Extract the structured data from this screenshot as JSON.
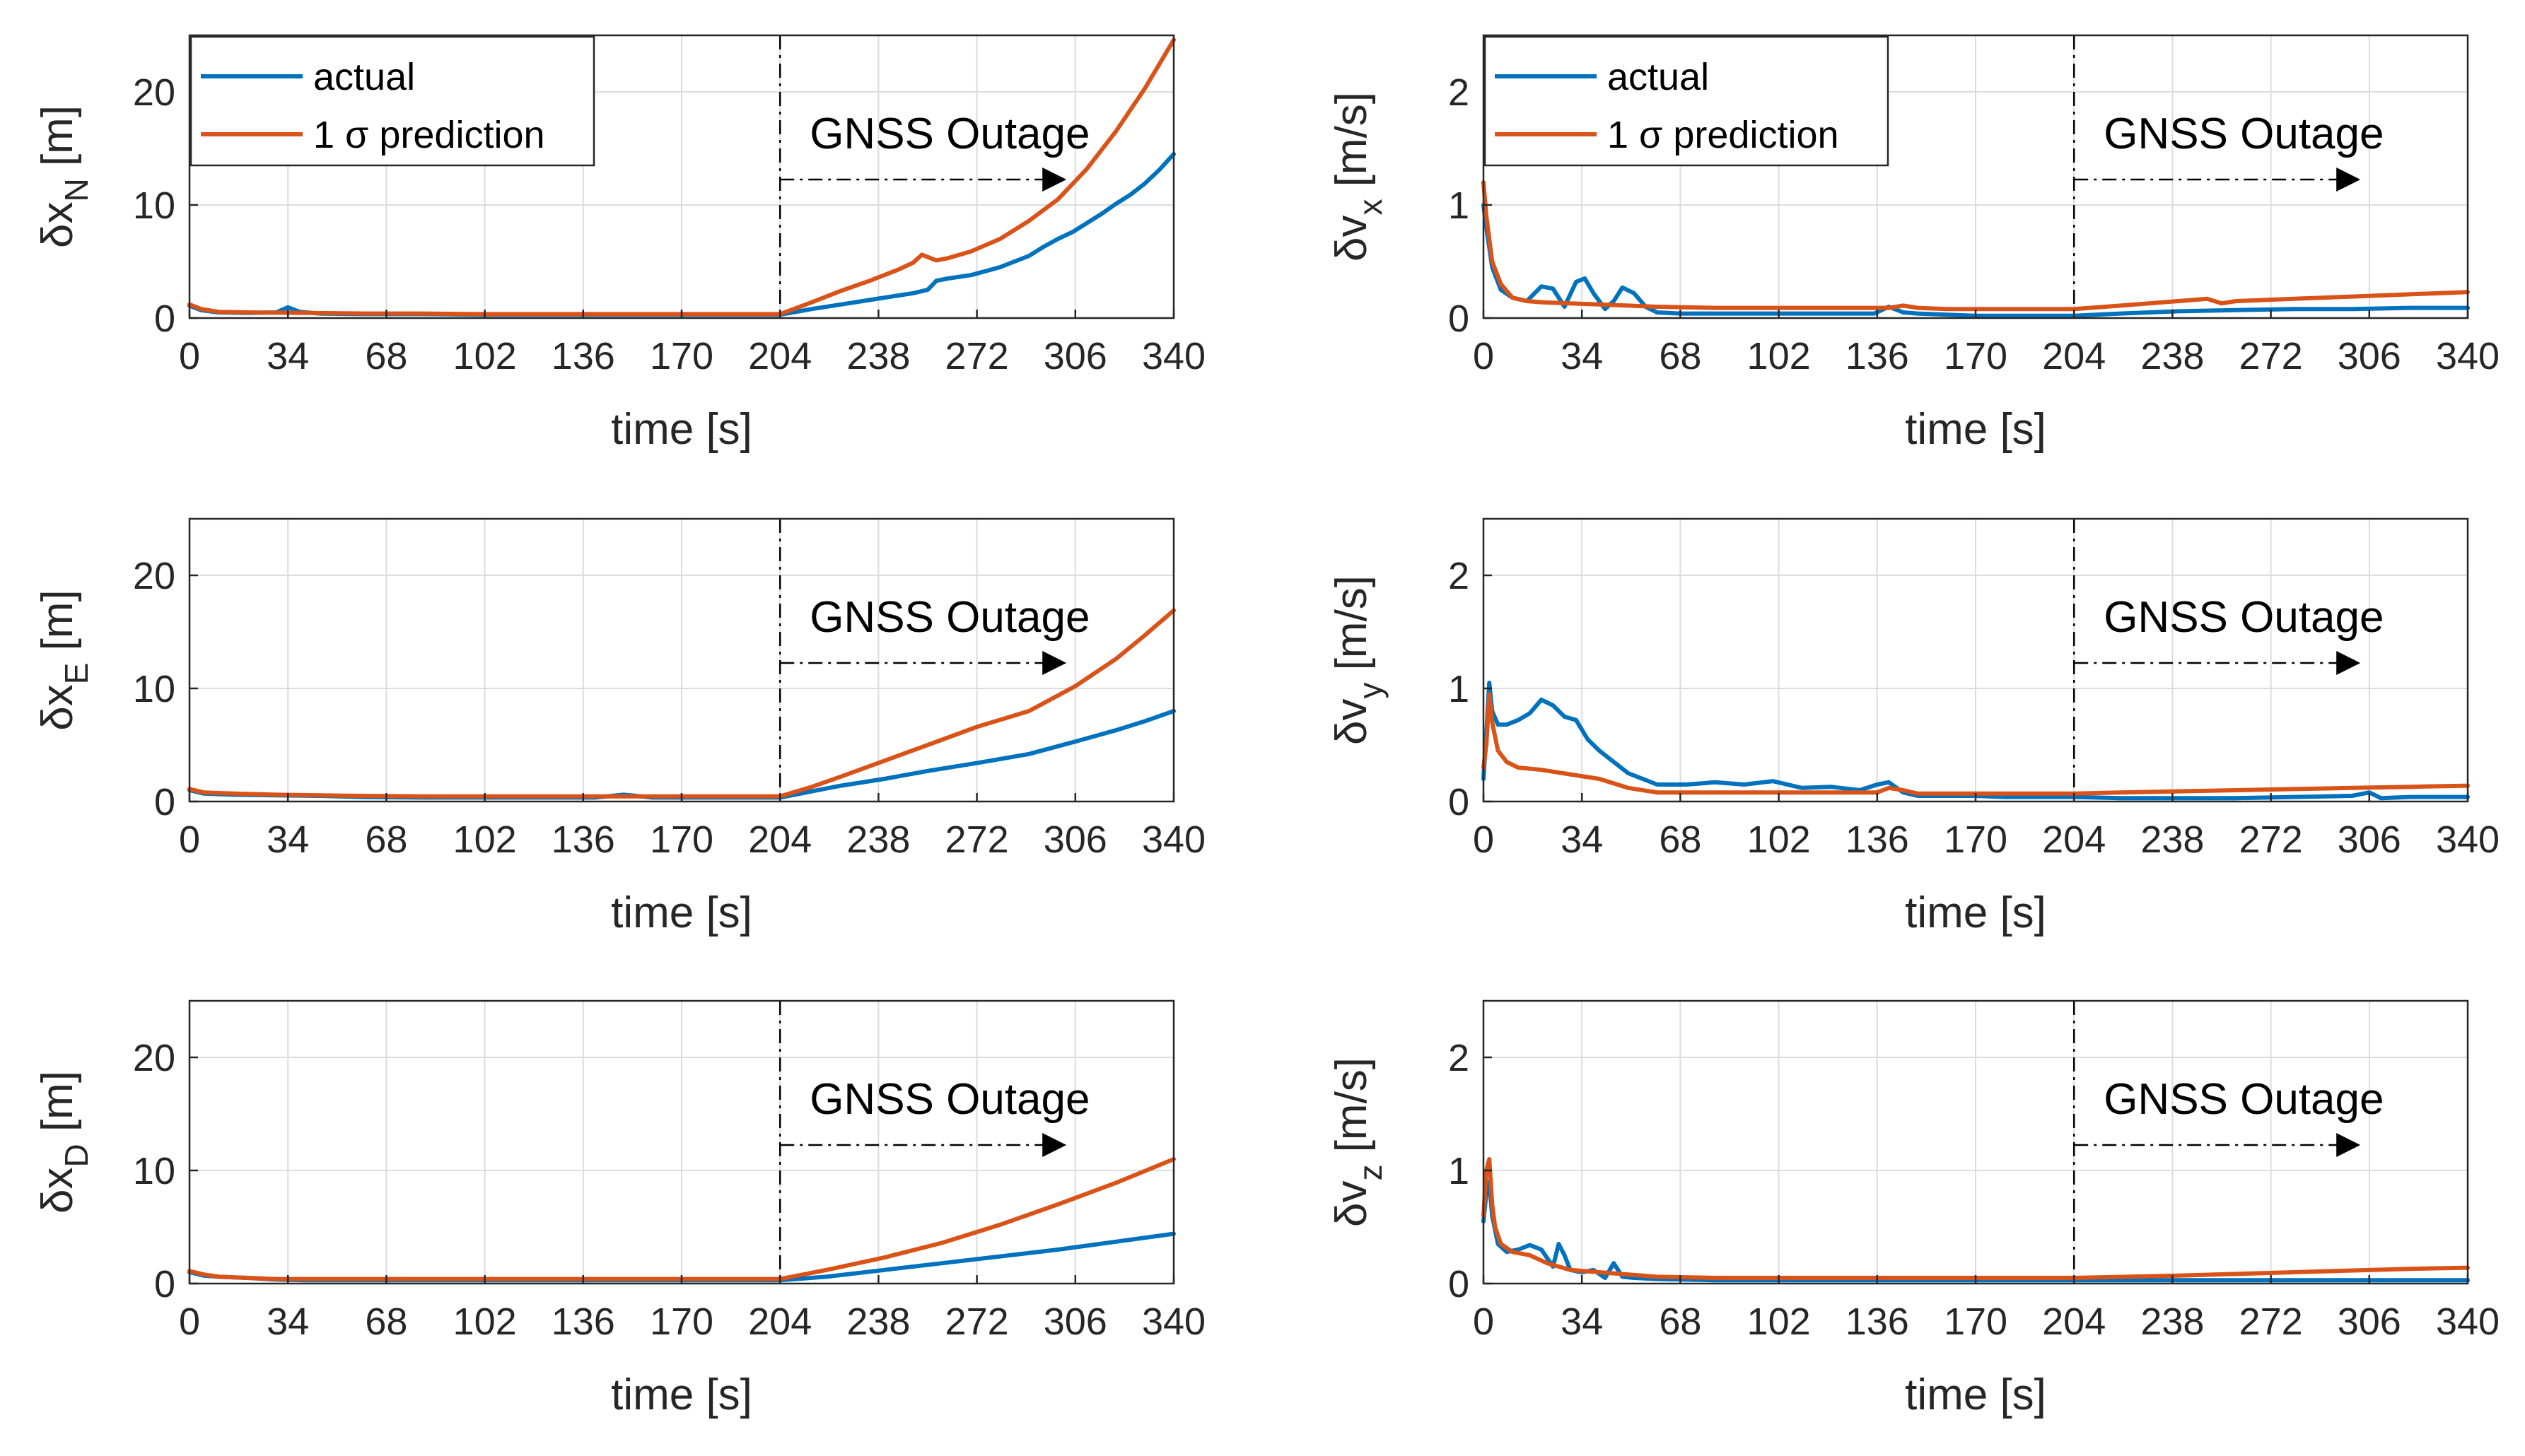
{
  "figure": {
    "colors": {
      "actual": "#0072BD",
      "prediction": "#D95319",
      "axis": "#262626",
      "grid": "#dcdcdc"
    },
    "legend": {
      "entries": [
        "actual",
        "1 σ prediction"
      ],
      "placement": "top-left",
      "shown_in_panels": [
        "dxN",
        "dvx"
      ]
    },
    "outage_label": "GNSS Outage",
    "outage_start": 204
  },
  "chart_data": [
    {
      "id": "dxN",
      "type": "line",
      "title": "",
      "xlabel": "time  [s]",
      "ylabel_base": "δx",
      "ylabel_sub": "N",
      "ylabel_unit": "[m]",
      "xlim": [
        0,
        340
      ],
      "ylim": [
        0,
        25
      ],
      "xticks": [
        0,
        34,
        68,
        102,
        136,
        170,
        204,
        238,
        272,
        306,
        340
      ],
      "yticks": [
        0,
        10,
        20
      ],
      "series": [
        {
          "name": "actual",
          "x": [
            0,
            4,
            10,
            20,
            30,
            34,
            38,
            45,
            60,
            80,
            100,
            120,
            140,
            160,
            180,
            204,
            215,
            225,
            235,
            245,
            250,
            255,
            258,
            262,
            270,
            280,
            290,
            295,
            300,
            305,
            310,
            315,
            320,
            325,
            330,
            335,
            340
          ],
          "y": [
            1.1,
            0.7,
            0.5,
            0.45,
            0.5,
            0.95,
            0.55,
            0.4,
            0.35,
            0.35,
            0.3,
            0.3,
            0.3,
            0.3,
            0.3,
            0.3,
            0.8,
            1.2,
            1.6,
            2.0,
            2.2,
            2.5,
            3.3,
            3.5,
            3.8,
            4.5,
            5.5,
            6.3,
            7.0,
            7.6,
            8.4,
            9.2,
            10.1,
            10.9,
            11.9,
            13.1,
            14.5
          ]
        },
        {
          "name": "1 σ prediction",
          "x": [
            0,
            4,
            10,
            20,
            40,
            60,
            80,
            100,
            120,
            140,
            160,
            180,
            204,
            215,
            225,
            235,
            245,
            250,
            253,
            258,
            262,
            270,
            280,
            290,
            300,
            310,
            320,
            330,
            340
          ],
          "y": [
            1.2,
            0.8,
            0.55,
            0.5,
            0.45,
            0.4,
            0.4,
            0.35,
            0.35,
            0.35,
            0.35,
            0.35,
            0.35,
            1.4,
            2.4,
            3.3,
            4.3,
            4.9,
            5.6,
            5.1,
            5.3,
            5.9,
            7.0,
            8.6,
            10.5,
            13.2,
            16.5,
            20.3,
            24.6
          ]
        }
      ]
    },
    {
      "id": "dvx",
      "type": "line",
      "title": "",
      "xlabel": "time  [s]",
      "ylabel_base": "δv",
      "ylabel_sub": "x",
      "ylabel_unit": "[m/s]",
      "xlim": [
        0,
        340
      ],
      "ylim": [
        0,
        2.5
      ],
      "xticks": [
        0,
        34,
        68,
        102,
        136,
        170,
        204,
        238,
        272,
        306,
        340
      ],
      "yticks": [
        0,
        1,
        2
      ],
      "series": [
        {
          "name": "actual",
          "x": [
            0,
            1,
            3,
            6,
            10,
            15,
            20,
            24,
            28,
            32,
            35,
            38,
            42,
            45,
            48,
            52,
            56,
            60,
            68,
            80,
            100,
            120,
            135,
            140,
            145,
            150,
            160,
            170,
            180,
            190,
            204,
            220,
            240,
            260,
            280,
            300,
            320,
            340
          ],
          "y": [
            1.0,
            0.8,
            0.45,
            0.25,
            0.18,
            0.15,
            0.28,
            0.26,
            0.1,
            0.32,
            0.35,
            0.22,
            0.08,
            0.15,
            0.27,
            0.22,
            0.1,
            0.05,
            0.04,
            0.04,
            0.04,
            0.04,
            0.04,
            0.1,
            0.05,
            0.04,
            0.03,
            0.02,
            0.02,
            0.02,
            0.02,
            0.04,
            0.06,
            0.07,
            0.08,
            0.08,
            0.09,
            0.09
          ]
        },
        {
          "name": "1 σ prediction",
          "x": [
            0,
            1,
            3,
            6,
            10,
            15,
            20,
            30,
            40,
            50,
            60,
            80,
            100,
            120,
            140,
            145,
            150,
            160,
            170,
            180,
            190,
            204,
            220,
            240,
            250,
            255,
            260,
            280,
            300,
            320,
            340
          ],
          "y": [
            1.2,
            0.9,
            0.5,
            0.3,
            0.18,
            0.15,
            0.14,
            0.13,
            0.12,
            0.11,
            0.1,
            0.09,
            0.09,
            0.09,
            0.09,
            0.11,
            0.09,
            0.08,
            0.08,
            0.08,
            0.08,
            0.08,
            0.11,
            0.15,
            0.17,
            0.13,
            0.15,
            0.17,
            0.19,
            0.21,
            0.23
          ]
        }
      ]
    },
    {
      "id": "dxE",
      "type": "line",
      "title": "",
      "xlabel": "time  [s]",
      "ylabel_base": "δx",
      "ylabel_sub": "E",
      "ylabel_unit": "[m]",
      "xlim": [
        0,
        340
      ],
      "ylim": [
        0,
        25
      ],
      "xticks": [
        0,
        34,
        68,
        102,
        136,
        170,
        204,
        238,
        272,
        306,
        340
      ],
      "yticks": [
        0,
        10,
        20
      ],
      "series": [
        {
          "name": "actual",
          "x": [
            0,
            5,
            15,
            30,
            45,
            60,
            80,
            100,
            120,
            140,
            150,
            160,
            180,
            200,
            204,
            215,
            225,
            240,
            255,
            272,
            290,
            306,
            320,
            330,
            340
          ],
          "y": [
            1.0,
            0.7,
            0.6,
            0.55,
            0.5,
            0.4,
            0.35,
            0.35,
            0.35,
            0.35,
            0.6,
            0.35,
            0.35,
            0.35,
            0.35,
            0.9,
            1.4,
            2.0,
            2.7,
            3.4,
            4.2,
            5.3,
            6.3,
            7.1,
            8.0
          ]
        },
        {
          "name": "1 σ prediction",
          "x": [
            0,
            5,
            15,
            30,
            45,
            60,
            80,
            100,
            120,
            140,
            160,
            180,
            200,
            204,
            215,
            225,
            240,
            255,
            272,
            290,
            306,
            320,
            330,
            340
          ],
          "y": [
            1.1,
            0.8,
            0.7,
            0.6,
            0.55,
            0.5,
            0.45,
            0.45,
            0.45,
            0.45,
            0.45,
            0.45,
            0.45,
            0.45,
            1.3,
            2.2,
            3.6,
            5.0,
            6.6,
            8.0,
            10.2,
            12.6,
            14.7,
            16.9
          ]
        }
      ]
    },
    {
      "id": "dvy",
      "type": "line",
      "title": "",
      "xlabel": "time  [s]",
      "ylabel_base": "δv",
      "ylabel_sub": "y",
      "ylabel_unit": "[m/s]",
      "xlim": [
        0,
        340
      ],
      "ylim": [
        0,
        2.5
      ],
      "xticks": [
        0,
        34,
        68,
        102,
        136,
        170,
        204,
        238,
        272,
        306,
        340
      ],
      "yticks": [
        0,
        1,
        2
      ],
      "series": [
        {
          "name": "actual",
          "x": [
            0,
            1,
            2,
            3,
            5,
            8,
            12,
            16,
            20,
            24,
            28,
            32,
            36,
            40,
            45,
            50,
            55,
            60,
            70,
            80,
            90,
            100,
            110,
            120,
            130,
            136,
            140,
            145,
            150,
            160,
            170,
            180,
            190,
            204,
            220,
            240,
            260,
            280,
            300,
            306,
            310,
            320,
            340
          ],
          "y": [
            0.2,
            0.6,
            1.05,
            0.8,
            0.68,
            0.68,
            0.72,
            0.78,
            0.9,
            0.85,
            0.75,
            0.72,
            0.55,
            0.45,
            0.35,
            0.25,
            0.2,
            0.15,
            0.15,
            0.17,
            0.15,
            0.18,
            0.12,
            0.13,
            0.1,
            0.15,
            0.17,
            0.08,
            0.05,
            0.05,
            0.05,
            0.04,
            0.04,
            0.04,
            0.03,
            0.03,
            0.03,
            0.04,
            0.05,
            0.08,
            0.03,
            0.04,
            0.04
          ]
        },
        {
          "name": "1 σ prediction",
          "x": [
            0,
            1,
            2,
            3,
            5,
            8,
            12,
            20,
            30,
            40,
            50,
            60,
            80,
            100,
            120,
            136,
            140,
            145,
            150,
            170,
            190,
            204,
            220,
            240,
            260,
            280,
            300,
            320,
            340
          ],
          "y": [
            0.3,
            0.5,
            0.95,
            0.7,
            0.45,
            0.35,
            0.3,
            0.28,
            0.24,
            0.2,
            0.12,
            0.08,
            0.08,
            0.08,
            0.08,
            0.08,
            0.12,
            0.1,
            0.07,
            0.07,
            0.07,
            0.07,
            0.08,
            0.09,
            0.1,
            0.11,
            0.12,
            0.13,
            0.14
          ]
        }
      ]
    },
    {
      "id": "dxD",
      "type": "line",
      "title": "",
      "xlabel": "time  [s]",
      "ylabel_base": "δx",
      "ylabel_sub": "D",
      "ylabel_unit": "[m]",
      "xlim": [
        0,
        340
      ],
      "ylim": [
        0,
        25
      ],
      "xticks": [
        0,
        34,
        68,
        102,
        136,
        170,
        204,
        238,
        272,
        306,
        340
      ],
      "yticks": [
        0,
        10,
        20
      ],
      "series": [
        {
          "name": "actual",
          "x": [
            0,
            5,
            10,
            20,
            30,
            40,
            60,
            80,
            100,
            120,
            140,
            160,
            180,
            204,
            220,
            240,
            260,
            280,
            300,
            320,
            340
          ],
          "y": [
            1.0,
            0.7,
            0.6,
            0.5,
            0.35,
            0.3,
            0.3,
            0.3,
            0.3,
            0.3,
            0.3,
            0.3,
            0.3,
            0.3,
            0.6,
            1.2,
            1.8,
            2.4,
            3.0,
            3.7,
            4.4
          ]
        },
        {
          "name": "1 σ prediction",
          "x": [
            0,
            5,
            10,
            20,
            30,
            40,
            60,
            80,
            100,
            120,
            140,
            160,
            180,
            204,
            220,
            240,
            260,
            280,
            300,
            320,
            340
          ],
          "y": [
            1.1,
            0.8,
            0.6,
            0.5,
            0.4,
            0.4,
            0.4,
            0.4,
            0.4,
            0.4,
            0.4,
            0.4,
            0.4,
            0.4,
            1.2,
            2.3,
            3.6,
            5.2,
            7.0,
            8.9,
            11.0
          ]
        }
      ]
    },
    {
      "id": "dvz",
      "type": "line",
      "title": "",
      "xlabel": "time  [s]",
      "ylabel_base": "δv",
      "ylabel_sub": "z",
      "ylabel_unit": "[m/s]",
      "xlim": [
        0,
        340
      ],
      "ylim": [
        0,
        2.5
      ],
      "xticks": [
        0,
        34,
        68,
        102,
        136,
        170,
        204,
        238,
        272,
        306,
        340
      ],
      "yticks": [
        0,
        1,
        2
      ],
      "series": [
        {
          "name": "actual",
          "x": [
            0,
            1,
            2,
            3,
            5,
            8,
            12,
            16,
            20,
            24,
            26,
            28,
            30,
            34,
            38,
            42,
            45,
            48,
            52,
            60,
            80,
            100,
            120,
            140,
            160,
            180,
            204,
            240,
            280,
            340
          ],
          "y": [
            0.55,
            0.8,
            0.9,
            0.6,
            0.35,
            0.28,
            0.3,
            0.34,
            0.3,
            0.15,
            0.35,
            0.25,
            0.12,
            0.1,
            0.12,
            0.05,
            0.18,
            0.06,
            0.05,
            0.04,
            0.03,
            0.03,
            0.03,
            0.03,
            0.03,
            0.03,
            0.03,
            0.03,
            0.03,
            0.03
          ]
        },
        {
          "name": "1 σ prediction",
          "x": [
            0,
            1,
            2,
            3,
            4,
            6,
            10,
            16,
            22,
            30,
            40,
            50,
            60,
            80,
            100,
            120,
            140,
            160,
            180,
            204,
            240,
            280,
            320,
            340
          ],
          "y": [
            0.6,
            1.0,
            1.1,
            0.7,
            0.5,
            0.35,
            0.28,
            0.25,
            0.18,
            0.12,
            0.1,
            0.08,
            0.06,
            0.05,
            0.05,
            0.05,
            0.05,
            0.05,
            0.05,
            0.05,
            0.07,
            0.1,
            0.13,
            0.14
          ]
        }
      ]
    }
  ]
}
